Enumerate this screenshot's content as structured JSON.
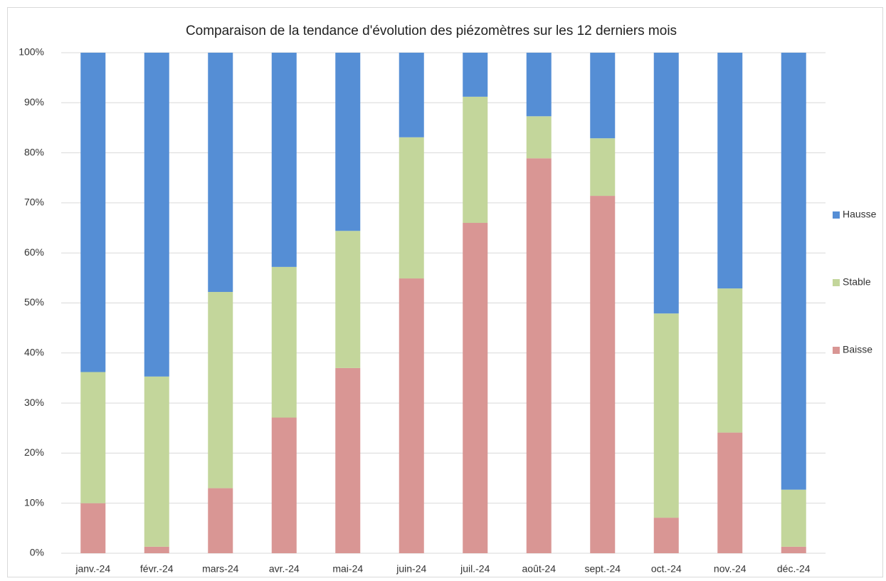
{
  "chart_data": {
    "type": "stacked_bar",
    "title": "Comparaison de la tendance d'évolution des piézomètres sur les 12 derniers mois",
    "categories": [
      "janv.-24",
      "févr.-24",
      "mars-24",
      "avr.-24",
      "mai-24",
      "juin-24",
      "juil.-24",
      "août-24",
      "sept.-24",
      "oct.-24",
      "nov.-24",
      "déc.-24"
    ],
    "series": [
      {
        "name": "Baisse",
        "color": "#d99694",
        "values": [
          10.0,
          1.3,
          13.0,
          27.1,
          37.0,
          54.9,
          66.0,
          78.9,
          71.4,
          7.1,
          24.1,
          1.3
        ]
      },
      {
        "name": "Stable",
        "color": "#c3d69b",
        "values": [
          26.2,
          34.0,
          39.2,
          30.1,
          27.4,
          28.2,
          25.2,
          8.4,
          11.5,
          40.8,
          28.8,
          11.4
        ]
      },
      {
        "name": "Hausse",
        "color": "#558ed5",
        "values": [
          63.8,
          64.7,
          47.8,
          42.8,
          35.6,
          16.9,
          8.8,
          12.7,
          17.1,
          52.1,
          47.1,
          87.3
        ]
      }
    ],
    "ylim": [
      0,
      100
    ],
    "yticks": [
      {
        "value": 0,
        "label": "0%"
      },
      {
        "value": 10,
        "label": "10%"
      },
      {
        "value": 20,
        "label": "20%"
      },
      {
        "value": 30,
        "label": "30%"
      },
      {
        "value": 40,
        "label": "40%"
      },
      {
        "value": 50,
        "label": "50%"
      },
      {
        "value": 60,
        "label": "60%"
      },
      {
        "value": 70,
        "label": "70%"
      },
      {
        "value": 80,
        "label": "80%"
      },
      {
        "value": 90,
        "label": "90%"
      },
      {
        "value": 100,
        "label": "100%"
      }
    ],
    "grid": true,
    "legend": "right"
  }
}
